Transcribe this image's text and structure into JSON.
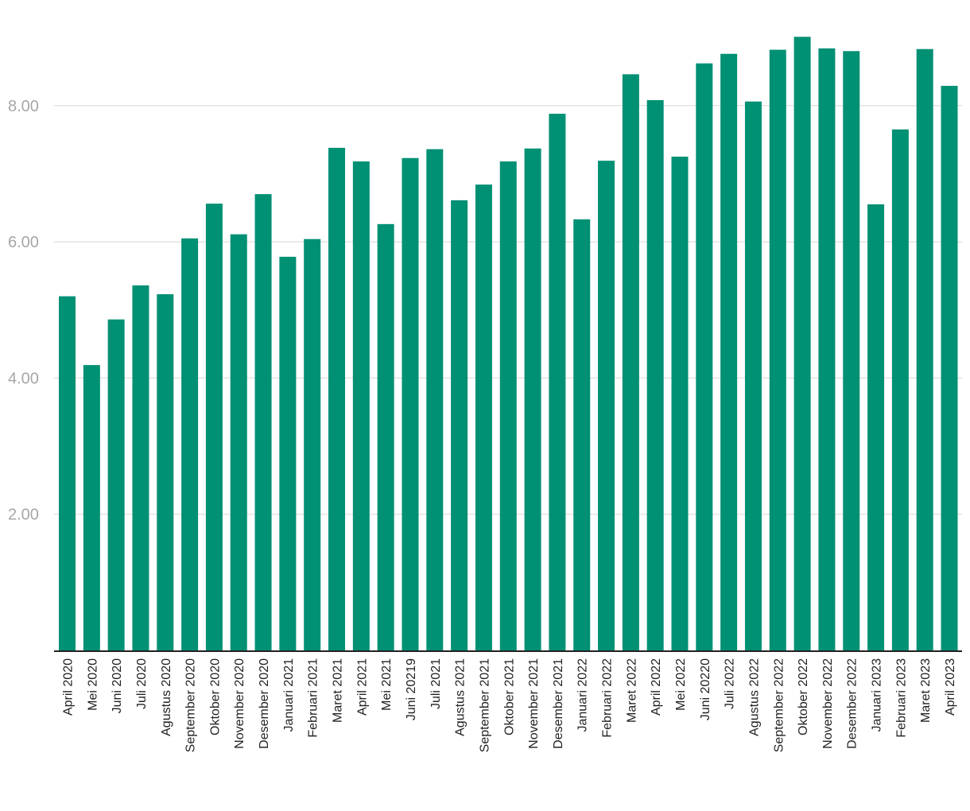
{
  "chart_data": {
    "type": "bar",
    "title": "",
    "xlabel": "",
    "ylabel": "",
    "ylim": [
      0,
      9.0
    ],
    "yticks": [
      2.0,
      4.0,
      6.0,
      8.0
    ],
    "ytick_labels": [
      "2.00",
      "4.00",
      "6.00",
      "8.00"
    ],
    "grid": true,
    "bar_color": "#009074",
    "categories": [
      "April 2020",
      "Mei 2020",
      "Juni 2020",
      "Juli 2020",
      "Agustus 2020",
      "September 2020",
      "Oktober 2020",
      "November 2020",
      "Desember 2020",
      "Januari 2021",
      "Februari 2021",
      "Maret 2021",
      "April 2021",
      "Mei 2021",
      "Juni 20219",
      "Juli 2021",
      "Agustus 2021",
      "September 2021",
      "Oktober 2021",
      "November 2021",
      "Desember 2021",
      "Januari 2022",
      "Februari 2022",
      "Maret 2022",
      "April 2022",
      "Mei 2022",
      "Juni 20220",
      "Juli 2022",
      "Agustus 2022",
      "September 2022",
      "Oktober 2022",
      "November 2022",
      "Desember 2022",
      "Januari 2023",
      "Februari 2023",
      "Maret 2023",
      "April 2023"
    ],
    "values": [
      5.2,
      4.19,
      4.86,
      5.36,
      5.23,
      6.05,
      6.56,
      6.11,
      6.7,
      5.78,
      6.04,
      7.38,
      7.18,
      6.26,
      7.23,
      7.36,
      6.61,
      6.84,
      7.18,
      7.37,
      7.88,
      6.33,
      7.19,
      8.46,
      8.08,
      7.25,
      8.62,
      8.76,
      8.06,
      8.82,
      9.01,
      8.84,
      8.8,
      6.55,
      7.65,
      8.83,
      8.29
    ]
  }
}
